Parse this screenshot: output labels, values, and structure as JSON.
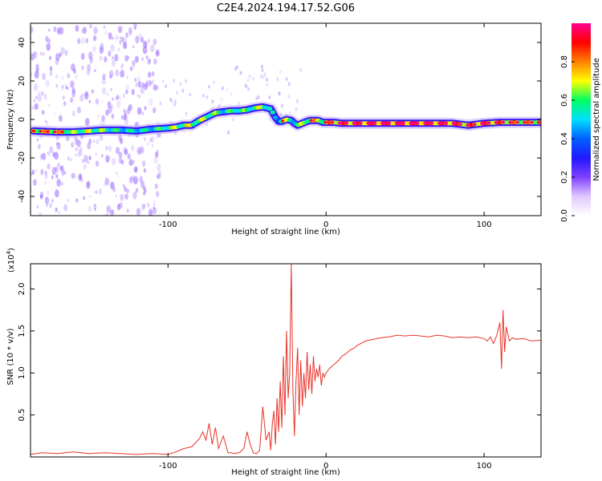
{
  "title": "C2E4.2024.194.17.52.G06",
  "colors": {
    "snr_line": "#e8332a",
    "ridge": "#3a17ff",
    "scatter": "#a070ff",
    "colorbar_stops": [
      "#ffffff",
      "#e0c8ff",
      "#8040ff",
      "#2018ff",
      "#0060ff",
      "#00e0ff",
      "#00ff60",
      "#ffff00",
      "#ff8000",
      "#ff0000",
      "#ff0090"
    ]
  },
  "chart_data": [
    {
      "type": "heatmap",
      "xlabel": "Height of straight line (km)",
      "ylabel": "Frequency (Hz)",
      "xlim": [
        -187,
        136
      ],
      "ylim": [
        -50,
        50
      ],
      "x_ticks": [
        -100,
        0,
        100
      ],
      "x_tick_labels": [
        "-100",
        "0",
        "100"
      ],
      "y_ticks": [
        -40,
        -20,
        0,
        20,
        40
      ],
      "y_tick_labels": [
        "-40",
        "-20",
        "0",
        "20",
        "40"
      ],
      "colorbar": {
        "label": "Normalized spectral amplitude",
        "range": [
          0,
          1
        ],
        "ticks": [
          0.0,
          0.2,
          0.4,
          0.6,
          0.8
        ],
        "tick_labels": [
          "0.0",
          "0.2",
          "0.4",
          "0.6",
          "0.8"
        ]
      },
      "ridge": {
        "x": [
          -185,
          -170,
          -160,
          -150,
          -140,
          -130,
          -120,
          -110,
          -100,
          -95,
          -90,
          -85,
          -80,
          -75,
          -70,
          -65,
          -60,
          -55,
          -50,
          -45,
          -40,
          -35,
          -32,
          -30,
          -28,
          -25,
          -22,
          -20,
          -18,
          -15,
          -12,
          -10,
          -8,
          -5,
          -2,
          0,
          5,
          10,
          20,
          40,
          60,
          80,
          90,
          100,
          110,
          120,
          136
        ],
        "y": [
          -6,
          -6.5,
          -6.5,
          -6,
          -5.5,
          -5.5,
          -6,
          -5,
          -4.5,
          -4,
          -3,
          -3,
          -0.5,
          1.5,
          3.5,
          4,
          4.5,
          4.5,
          5,
          6,
          6.5,
          5.5,
          1,
          -1,
          -1,
          0,
          -0.5,
          -2,
          -3,
          -2,
          -1,
          -0.5,
          -0.5,
          -0.5,
          -1.5,
          -1.5,
          -1.5,
          -2,
          -2,
          -2,
          -2,
          -2,
          -3,
          -2,
          -1.5,
          -1.5,
          -1.5
        ],
        "amplitude": [
          0.8,
          0.85,
          0.7,
          0.75,
          0.7,
          0.6,
          0.6,
          0.6,
          0.7,
          0.75,
          0.7,
          0.8,
          0.7,
          0.75,
          0.7,
          0.6,
          0.65,
          0.7,
          0.65,
          0.7,
          0.75,
          0.6,
          0.5,
          0.5,
          0.85,
          0.7,
          0.6,
          0.6,
          0.7,
          0.7,
          0.75,
          0.85,
          0.85,
          0.75,
          0.8,
          0.85,
          0.9,
          0.92,
          0.95,
          0.98,
          0.98,
          0.95,
          0.9,
          0.95,
          0.9,
          0.85,
          0.85
        ]
      }
    },
    {
      "type": "line",
      "xlabel": "Height of straight line (km)",
      "ylabel": "SNR (10 * v/v)",
      "y_multiplier_label": "(x10",
      "y_multiplier_exp": "4",
      "xlim": [
        -187,
        136
      ],
      "ylim": [
        0,
        2.3
      ],
      "x_ticks": [
        -100,
        0,
        100
      ],
      "x_tick_labels": [
        "-100",
        "0",
        "100"
      ],
      "y_ticks": [
        0.5,
        1.0,
        1.5,
        2.0
      ],
      "y_tick_labels": [
        "0.5",
        "1.0",
        "1.5",
        "2.0"
      ],
      "series": [
        {
          "x": [
            -187,
            -180,
            -170,
            -160,
            -150,
            -140,
            -130,
            -120,
            -110,
            -100,
            -95,
            -90,
            -85,
            -82,
            -80,
            -78,
            -76,
            -74,
            -72,
            -70,
            -68,
            -65,
            -62,
            -60,
            -58,
            -55,
            -52,
            -50,
            -48,
            -46,
            -44,
            -42,
            -40,
            -38,
            -36,
            -35,
            -34,
            -33,
            -32,
            -31,
            -30,
            -29,
            -28,
            -27,
            -26,
            -25,
            -24,
            -23,
            -22,
            -21,
            -20,
            -19,
            -18,
            -17,
            -16,
            -15,
            -14,
            -13,
            -12,
            -11,
            -10,
            -9,
            -8,
            -7,
            -6,
            -5,
            -4,
            -3,
            -2,
            -1,
            0,
            2,
            5,
            8,
            10,
            12,
            15,
            18,
            20,
            25,
            30,
            35,
            40,
            45,
            50,
            55,
            60,
            65,
            70,
            75,
            80,
            85,
            90,
            95,
            100,
            102,
            104,
            106,
            108,
            110,
            111,
            112,
            113,
            114,
            116,
            118,
            120,
            125,
            130,
            136
          ],
          "y": [
            0.03,
            0.05,
            0.04,
            0.06,
            0.04,
            0.05,
            0.04,
            0.03,
            0.04,
            0.03,
            0.06,
            0.1,
            0.12,
            0.18,
            0.22,
            0.3,
            0.2,
            0.4,
            0.15,
            0.35,
            0.1,
            0.25,
            0.05,
            0.05,
            0.04,
            0.05,
            0.1,
            0.3,
            0.15,
            0.05,
            0.04,
            0.08,
            0.6,
            0.2,
            0.3,
            0.08,
            0.4,
            0.55,
            0.15,
            0.7,
            0.3,
            0.9,
            0.35,
            1.2,
            0.5,
            1.5,
            0.7,
            1.0,
            2.3,
            0.8,
            0.25,
            0.9,
            1.3,
            0.5,
            1.15,
            0.6,
            1.0,
            0.7,
            1.25,
            0.8,
            1.1,
            0.75,
            1.2,
            0.9,
            1.05,
            0.95,
            1.1,
            0.85,
            1.0,
            0.95,
            1.0,
            1.05,
            1.1,
            1.15,
            1.2,
            1.22,
            1.27,
            1.3,
            1.33,
            1.38,
            1.4,
            1.42,
            1.43,
            1.45,
            1.44,
            1.45,
            1.44,
            1.43,
            1.45,
            1.44,
            1.42,
            1.43,
            1.42,
            1.43,
            1.41,
            1.38,
            1.43,
            1.35,
            1.45,
            1.6,
            1.05,
            1.75,
            1.25,
            1.55,
            1.38,
            1.42,
            1.4,
            1.41,
            1.38,
            1.39
          ]
        }
      ]
    }
  ]
}
